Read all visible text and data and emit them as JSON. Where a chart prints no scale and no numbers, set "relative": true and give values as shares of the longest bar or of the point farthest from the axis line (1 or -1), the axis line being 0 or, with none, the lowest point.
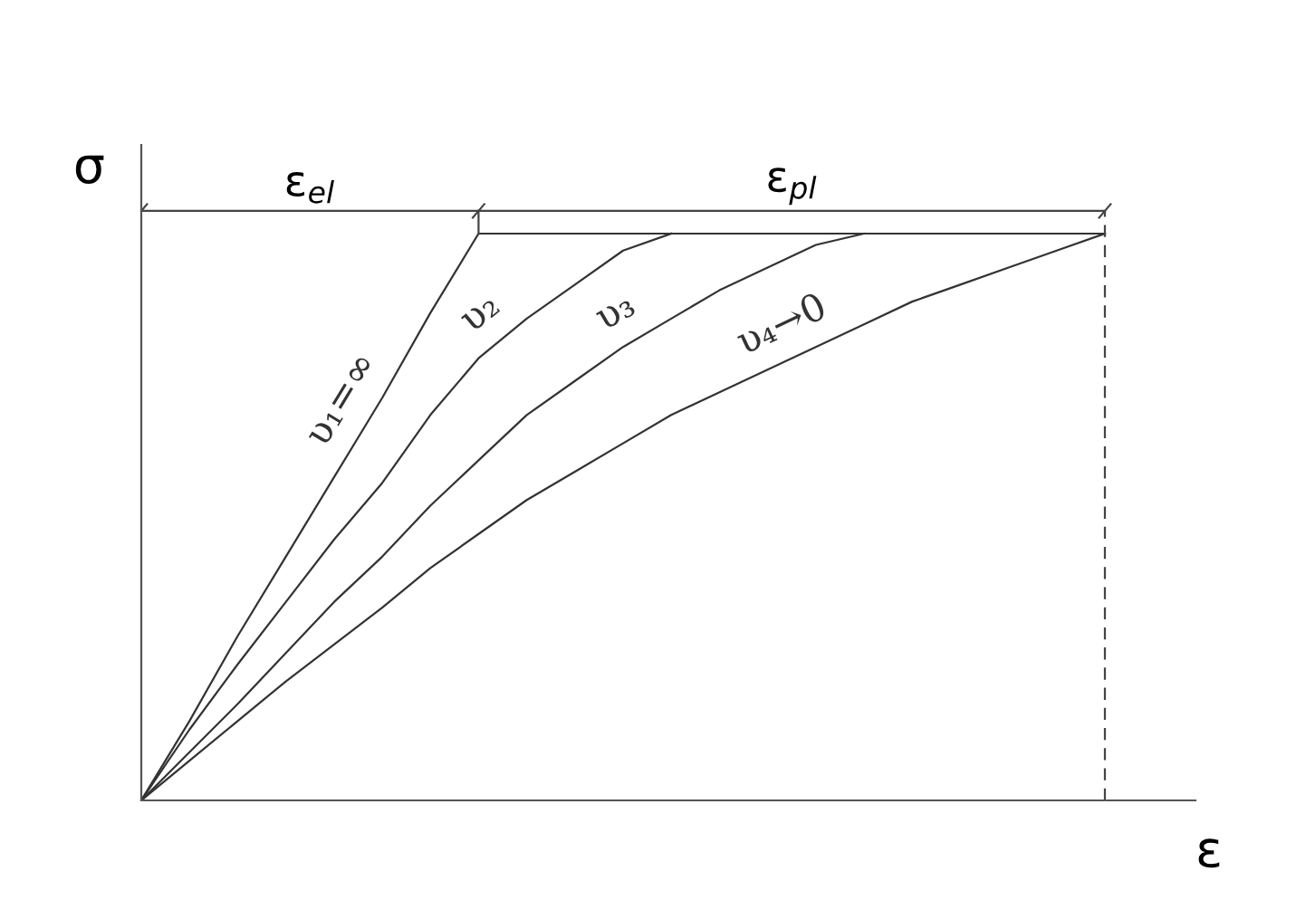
{
  "chart_data": {
    "type": "line",
    "relative": true,
    "xlabel": "ε",
    "ylabel": "σ",
    "categories": [
      null,
      null,
      null,
      null,
      null,
      null,
      null,
      null,
      null,
      null,
      null,
      null,
      null,
      null,
      null,
      null,
      null,
      null,
      null,
      null,
      null
    ],
    "series": [
      {
        "name": "υ₁=∞",
        "color": "#333333",
        "values": [
          0,
          0.14,
          0.29,
          0.43,
          0.57,
          0.71,
          0.86,
          1,
          1,
          1,
          1,
          1,
          1,
          1,
          1,
          1,
          1,
          1,
          1,
          1,
          1
        ]
      },
      {
        "name": "υ₂",
        "color": "#333333",
        "values": [
          0,
          0.125,
          0.24,
          0.35,
          0.46,
          0.56,
          0.68,
          0.78,
          0.85,
          0.91,
          0.97,
          1,
          null,
          null,
          null,
          null,
          null,
          null,
          null,
          null,
          null
        ]
      },
      {
        "name": "υ₃",
        "color": "#333333",
        "values": [
          0,
          0.085,
          0.17,
          0.26,
          0.35,
          0.43,
          0.52,
          0.6,
          0.68,
          0.74,
          0.8,
          0.85,
          0.9,
          0.94,
          0.98,
          1,
          null,
          null,
          null,
          null,
          null
        ]
      },
      {
        "name": "υ₄→0",
        "color": "#333333",
        "values": [
          0,
          0.07,
          0.14,
          0.21,
          0.275,
          0.34,
          0.41,
          0.47,
          0.53,
          0.58,
          0.63,
          0.68,
          0.72,
          0.76,
          0.8,
          0.84,
          0.88,
          0.91,
          0.94,
          0.97,
          1
        ]
      }
    ],
    "annotations": [
      "ε$_{el}$",
      "ε$_{pl}$"
    ],
    "grid": false,
    "legend": false,
    "marker": "none",
    "line_style": "solid"
  }
}
